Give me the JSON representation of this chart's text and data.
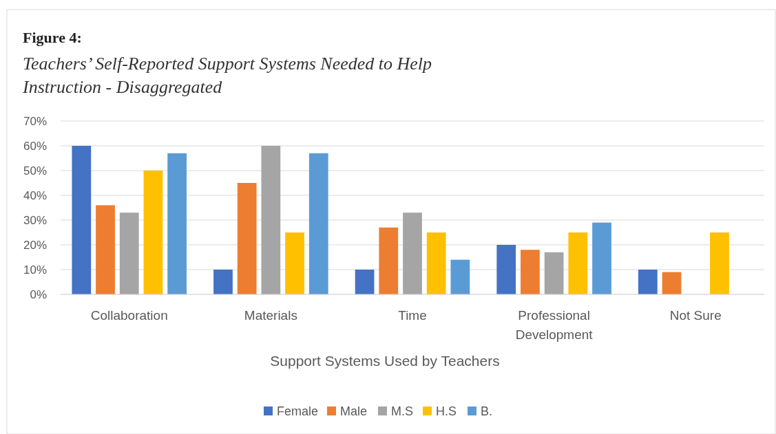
{
  "chart_data": {
    "type": "bar",
    "title": "Figure 4:",
    "subtitle": "Teachers’ Self-Reported Support Systems Needed to Help Instruction - Disaggregated",
    "xlabel": "Support Systems Used by Teachers",
    "categories": [
      "Collaboration",
      "Materials",
      "Time",
      "Professional Development",
      "Not Sure"
    ],
    "series": [
      {
        "name": "Female",
        "color": "#4472c4",
        "values": [
          60,
          10,
          10,
          20,
          10
        ]
      },
      {
        "name": "Male",
        "color": "#ed7d31",
        "values": [
          36,
          45,
          27,
          18,
          9
        ]
      },
      {
        "name": "M.S",
        "color": "#a5a5a5",
        "values": [
          33,
          60,
          33,
          17,
          null
        ]
      },
      {
        "name": "H.S",
        "color": "#ffc000",
        "values": [
          50,
          25,
          25,
          25,
          25
        ]
      },
      {
        "name": "B.",
        "color": "#5b9bd5",
        "values": [
          57,
          57,
          14,
          29,
          null
        ]
      }
    ],
    "ylim": [
      0,
      70
    ],
    "yticks": [
      {
        "value": 0,
        "label": "0%"
      },
      {
        "value": 10,
        "label": "10%"
      },
      {
        "value": 20,
        "label": "20%"
      },
      {
        "value": 30,
        "label": "30%"
      },
      {
        "value": 40,
        "label": "40%"
      },
      {
        "value": 50,
        "label": "50%"
      },
      {
        "value": 60,
        "label": "60%"
      },
      {
        "value": 70,
        "label": "70%"
      }
    ],
    "grid": "y",
    "legend": "bottom"
  }
}
